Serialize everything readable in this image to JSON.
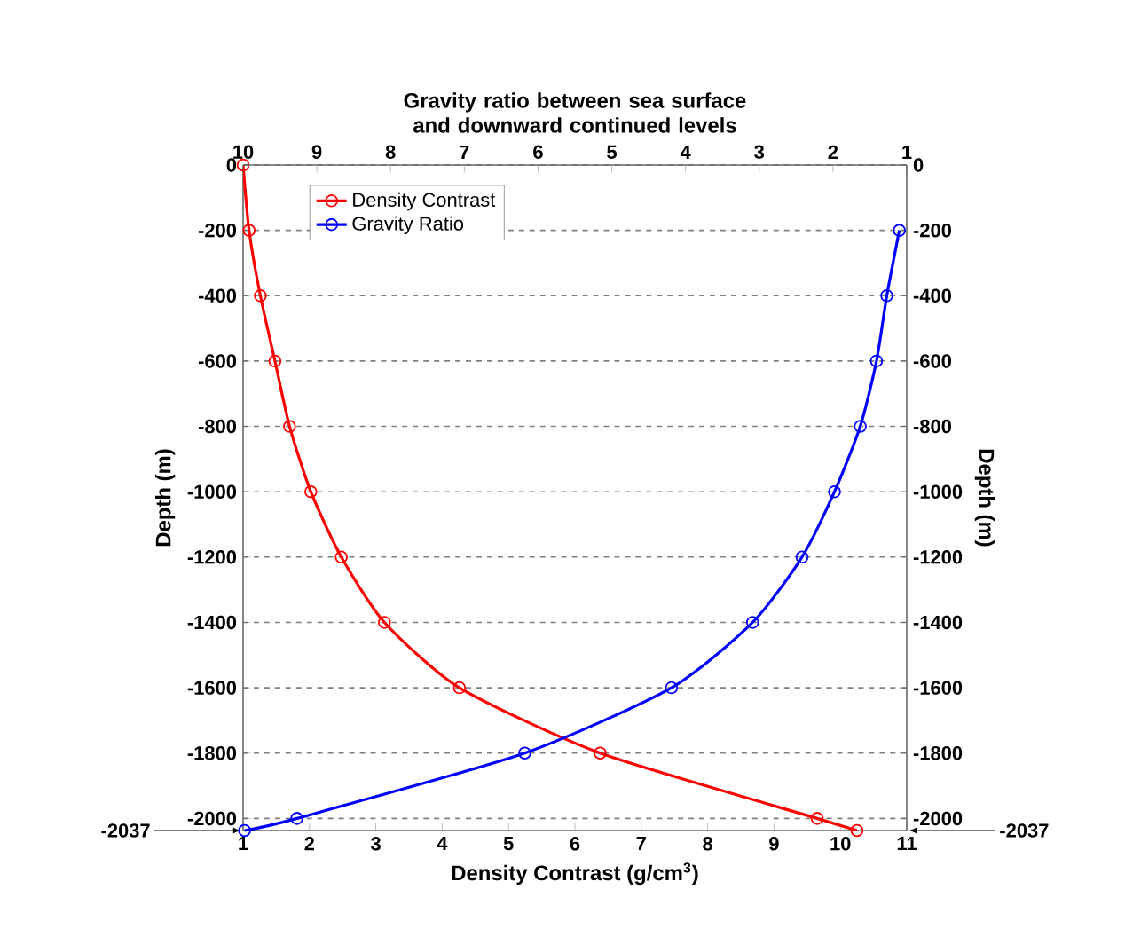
{
  "chart_data": {
    "type": "line",
    "xlabel": "Density Contrast (g/cm$^{3}$)",
    "ylabel": "Depth (m)",
    "y2label": "Depth (m)",
    "x2label": "Gravity ratio between sea surface and downward continued levels",
    "xlim": [
      1,
      11
    ],
    "xticks": [
      1,
      2,
      3,
      4,
      5,
      6,
      7,
      8,
      9,
      10,
      11
    ],
    "x2lim": [
      10,
      1
    ],
    "x2ticks": [
      10,
      9,
      8,
      7,
      6,
      5,
      4,
      3,
      2,
      1
    ],
    "ylim": [
      -2037,
      0
    ],
    "yticks": [
      0,
      -200,
      -400,
      -600,
      -800,
      -1000,
      -1200,
      -1400,
      -1600,
      -1800,
      -2000
    ],
    "y2lim": [
      -2037,
      0
    ],
    "y2ticks": [
      0,
      -200,
      -400,
      -600,
      -800,
      -1000,
      -1200,
      -1400,
      -1600,
      -1800,
      -2000
    ],
    "annotations": [
      "-2037",
      "-2037"
    ],
    "grid": "y",
    "legend": "top left",
    "marker": "circle",
    "line_style": "solid",
    "series": [
      {
        "name": "Density Contrast",
        "color": "#ff0000",
        "x": [
          1.0,
          1.09,
          1.26,
          1.48,
          1.7,
          2.02,
          2.48,
          3.13,
          4.26,
          6.38,
          9.65,
          10.25
        ],
        "values": [
          0,
          -200,
          -400,
          -600,
          -800,
          -1000,
          -1200,
          -1400,
          -1600,
          -1800,
          -2000,
          -2037
        ]
      },
      {
        "name": "Gravity Ratio",
        "color": "#0000ff",
        "axis": "x2",
        "x": [
          1.1,
          1.27,
          1.41,
          1.63,
          1.98,
          2.42,
          3.09,
          4.19,
          6.18,
          9.27,
          9.98
        ],
        "values": [
          -200,
          -400,
          -600,
          -800,
          -1000,
          -1200,
          -1400,
          -1600,
          -1800,
          -2000,
          -2037
        ]
      }
    ]
  }
}
